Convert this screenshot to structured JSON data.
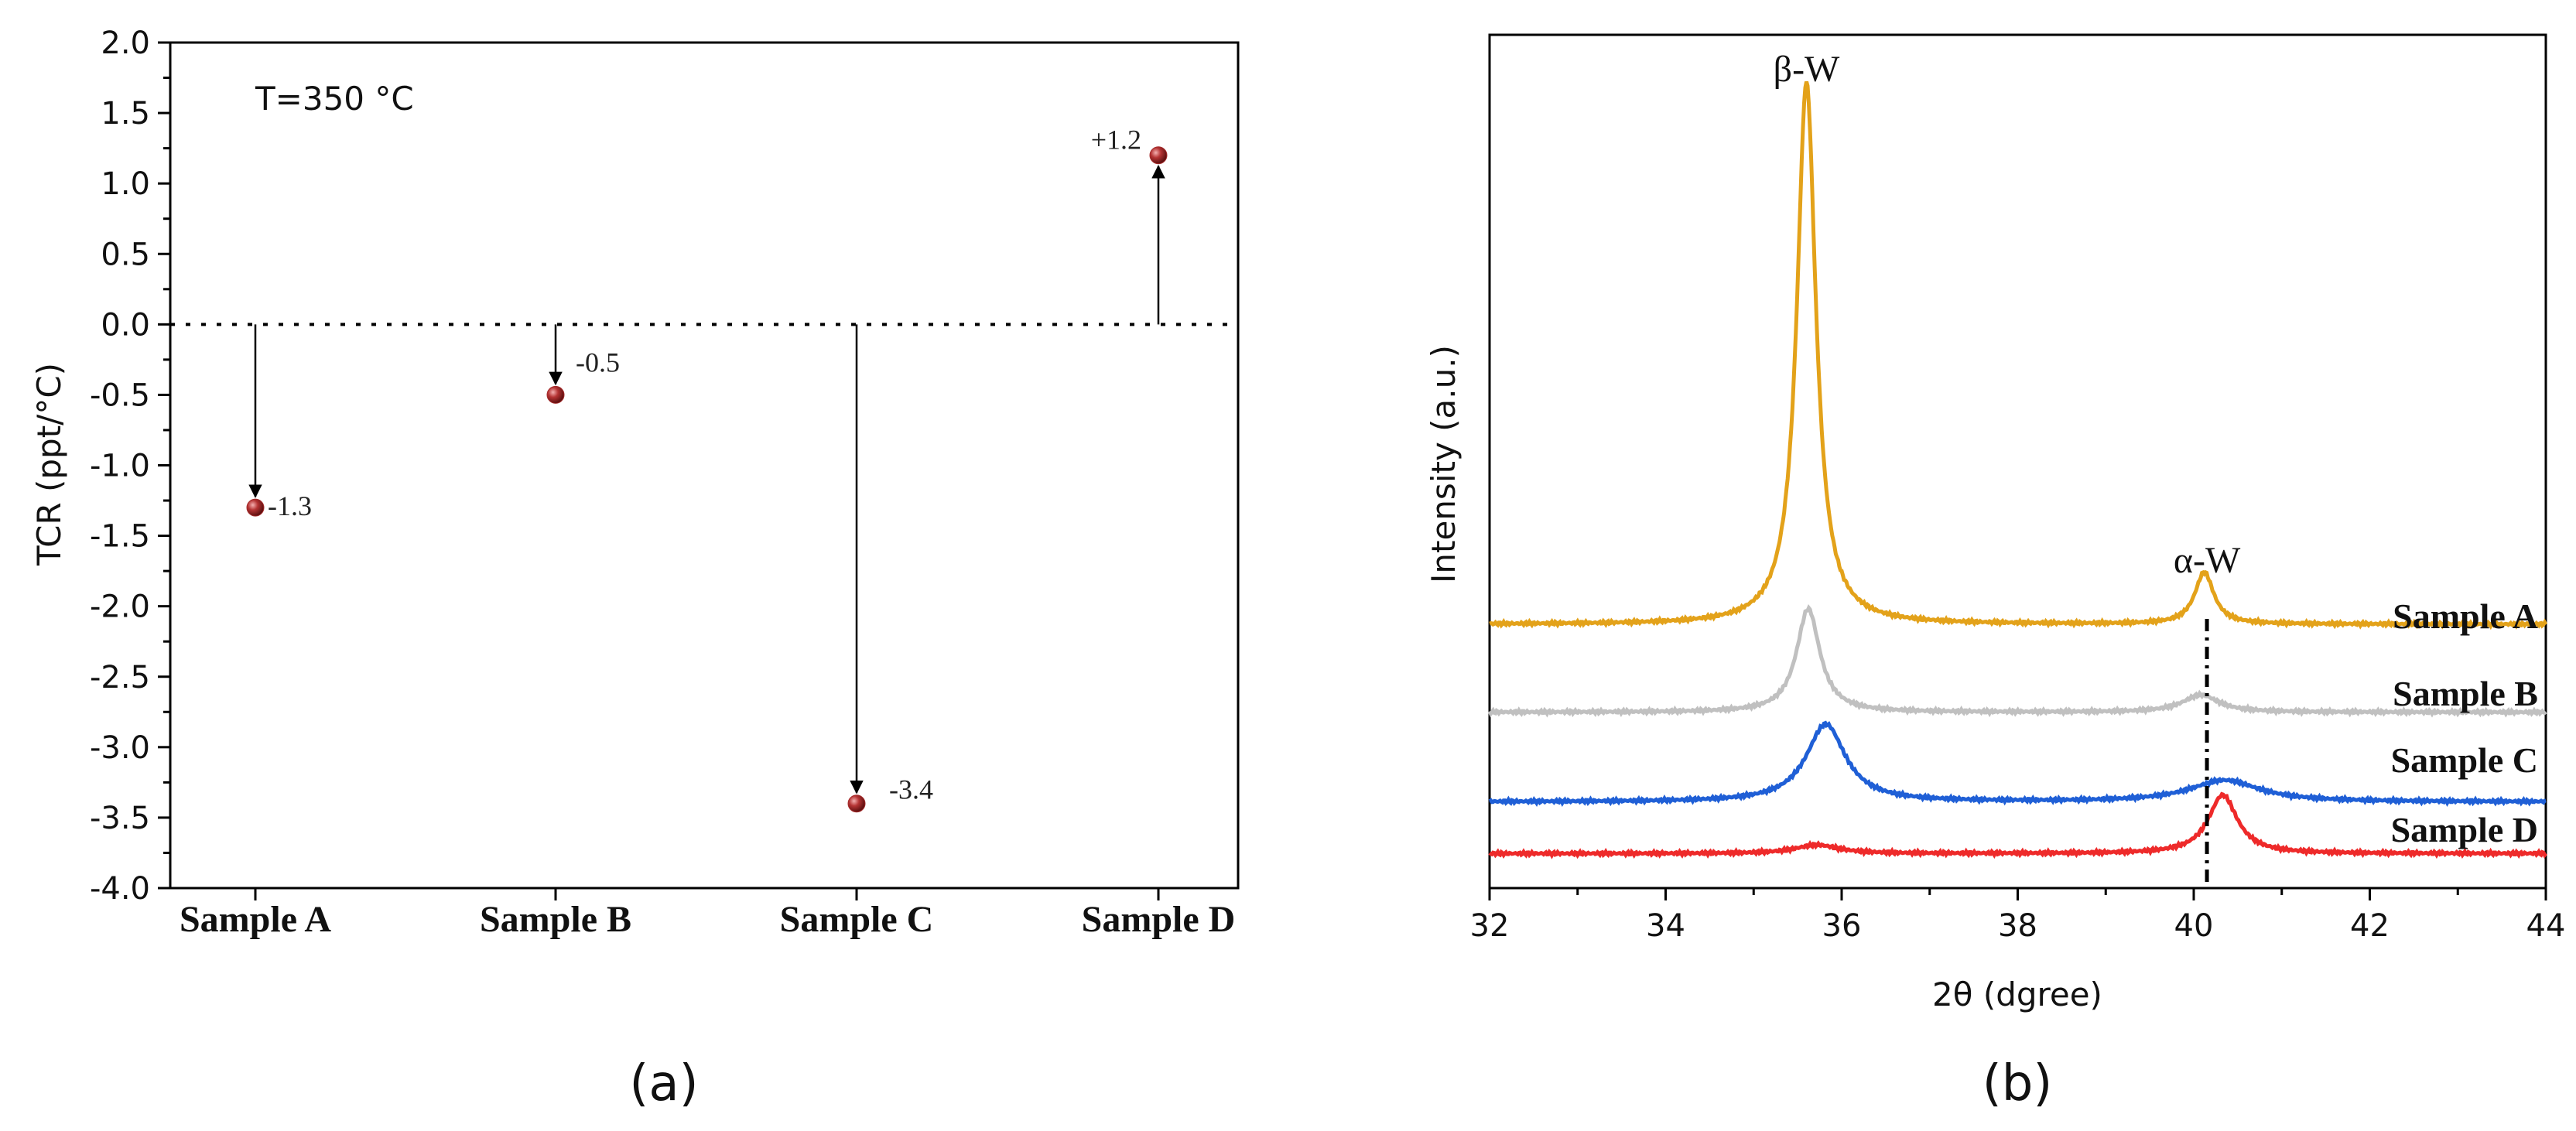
{
  "chart_data": [
    {
      "type": "scatter",
      "panel_label": "(a)",
      "annotation": "T=350 °C",
      "ylabel": "TCR (ppt/°C)",
      "xlabel": "",
      "categories": [
        "Sample A",
        "Sample B",
        "Sample C",
        "Sample D"
      ],
      "values": [
        -1.3,
        -0.5,
        -3.4,
        1.2
      ],
      "value_labels": [
        "-1.3",
        "-0.5",
        "-3.4",
        "+1.2"
      ],
      "ylim": [
        -4.0,
        2.0
      ],
      "yticks": [
        "-4.0",
        "-3.5",
        "-3.0",
        "-2.5",
        "-2.0",
        "-1.5",
        "-1.0",
        "-0.5",
        "0.0",
        "0.5",
        "1.0",
        "1.5",
        "2.0"
      ],
      "reference_line": 0.0,
      "marker_color": "#a52a2a"
    },
    {
      "type": "line",
      "panel_label": "(b)",
      "xlabel": "2θ (dgree)",
      "ylabel": "Intensity (a.u.)",
      "xlim": [
        32,
        44
      ],
      "xticks": [
        "32",
        "34",
        "36",
        "38",
        "40",
        "42",
        "44"
      ],
      "peak_labels": [
        {
          "text": "β-W",
          "x": 35.6
        },
        {
          "text": "α-W",
          "x": 40.15
        }
      ],
      "reference_line_x": 40.15,
      "series": [
        {
          "name": "Sample A",
          "color": "#e3a21a",
          "offset": 3.06,
          "peaks": [
            {
              "center": 35.6,
              "width": 0.13,
              "height": 6.3
            },
            {
              "center": 40.12,
              "width": 0.13,
              "height": 0.6
            }
          ]
        },
        {
          "name": "Sample B",
          "color": "#c0c0c0",
          "offset": 2.04,
          "peaks": [
            {
              "center": 35.62,
              "width": 0.16,
              "height": 1.2
            },
            {
              "center": 40.08,
              "width": 0.25,
              "height": 0.2
            }
          ]
        },
        {
          "name": "Sample C",
          "color": "#1f5fd6",
          "offset": 1.0,
          "peaks": [
            {
              "center": 35.82,
              "width": 0.27,
              "height": 0.9
            },
            {
              "center": 40.35,
              "width": 0.48,
              "height": 0.25
            }
          ]
        },
        {
          "name": "Sample D",
          "color": "#ee2a2a",
          "offset": 0.4,
          "peaks": [
            {
              "center": 35.72,
              "width": 0.3,
              "height": 0.1
            },
            {
              "center": 40.33,
              "width": 0.2,
              "height": 0.68
            }
          ]
        }
      ],
      "y_range": [
        0,
        9.9
      ]
    }
  ]
}
